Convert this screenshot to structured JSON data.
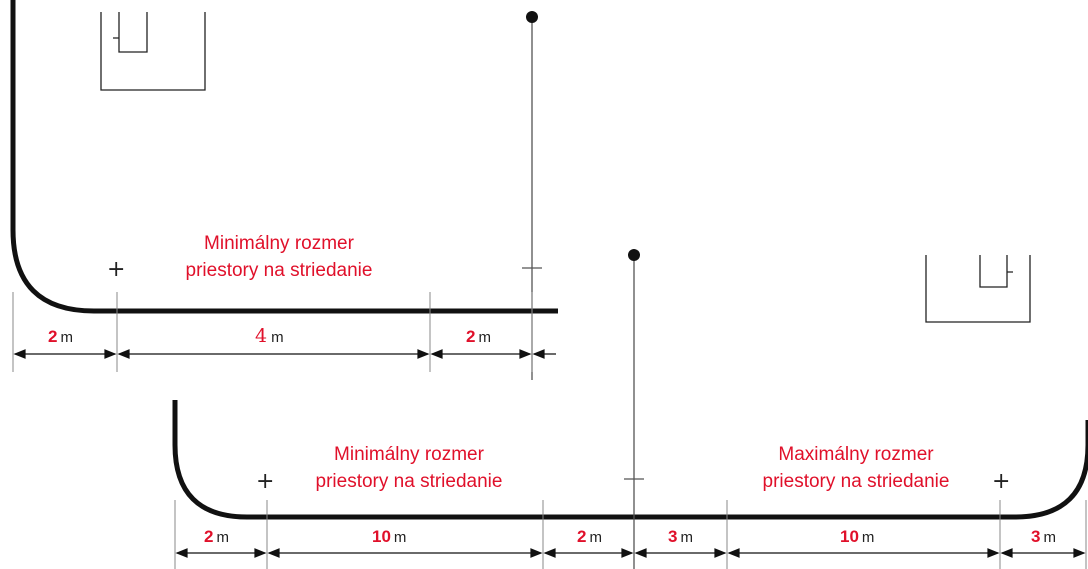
{
  "top": {
    "zone_label_line1": "Minimálny rozmer",
    "zone_label_line2": "priestory na striedanie",
    "dims": [
      {
        "value": "2",
        "unit": "m"
      },
      {
        "value": "4",
        "unit": "m"
      },
      {
        "value": "2",
        "unit": "m"
      }
    ]
  },
  "bottom": {
    "min_label_line1": "Minimálny rozmer",
    "min_label_line2": "priestory na striedanie",
    "max_label_line1": "Maximálny rozmer",
    "max_label_line2": "priestory na striedanie",
    "dims": [
      {
        "value": "2",
        "unit": "m"
      },
      {
        "value": "10",
        "unit": "m"
      },
      {
        "value": "2",
        "unit": "m"
      },
      {
        "value": "3",
        "unit": "m"
      },
      {
        "value": "10",
        "unit": "m"
      },
      {
        "value": "3",
        "unit": "m"
      }
    ]
  },
  "colors": {
    "label": "#e0102a",
    "line": "#111111"
  }
}
